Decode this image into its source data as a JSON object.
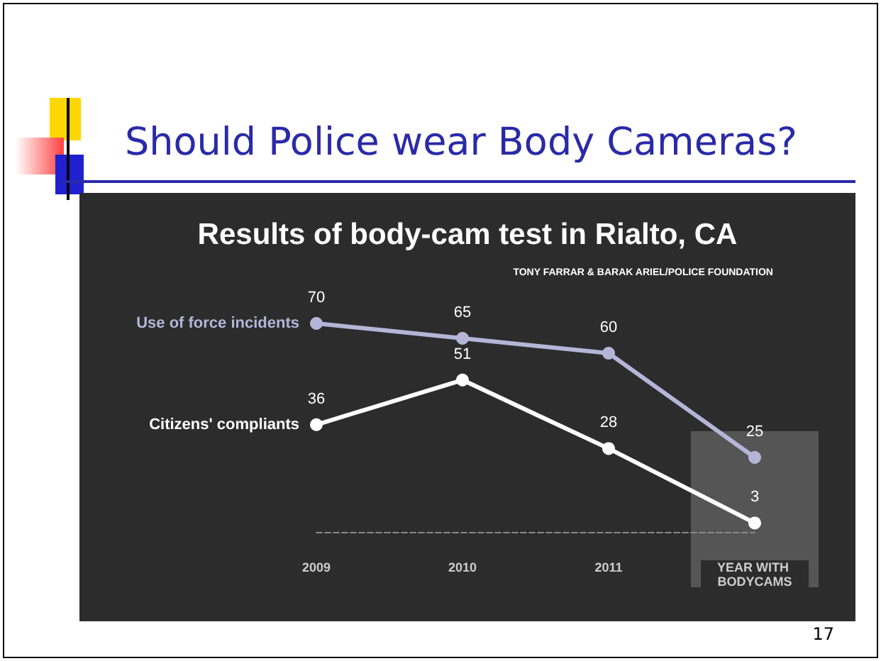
{
  "chart_data": {
    "type": "line",
    "title": "Should Police wear Body Cameras?",
    "subtitle": "Results of body-cam test in Rialto, CA",
    "annotations": [
      "TONY FARRAR & BARAK ARIEL/POLICE FOUNDATION",
      "17"
    ],
    "categories": [
      "2009",
      "2010",
      "2011",
      "YEAR WITH BODYCAMS"
    ],
    "series": [
      {
        "name": "Use of force incidents",
        "color": "#b4b6d8",
        "values": [
          70,
          65,
          60,
          25
        ]
      },
      {
        "name": "Citizens' compliants",
        "color": "#ffffff",
        "values": [
          36,
          51,
          28,
          3
        ]
      }
    ],
    "bands": [
      {
        "axis": "x",
        "from": "YEAR WITH BODYCAMS",
        "to": "YEAR WITH BODYCAMS",
        "color": "#555555"
      }
    ],
    "data_labels": true,
    "grid": false,
    "marker": "circle",
    "line_style": "solid",
    "tick_labels": "x"
  }
}
